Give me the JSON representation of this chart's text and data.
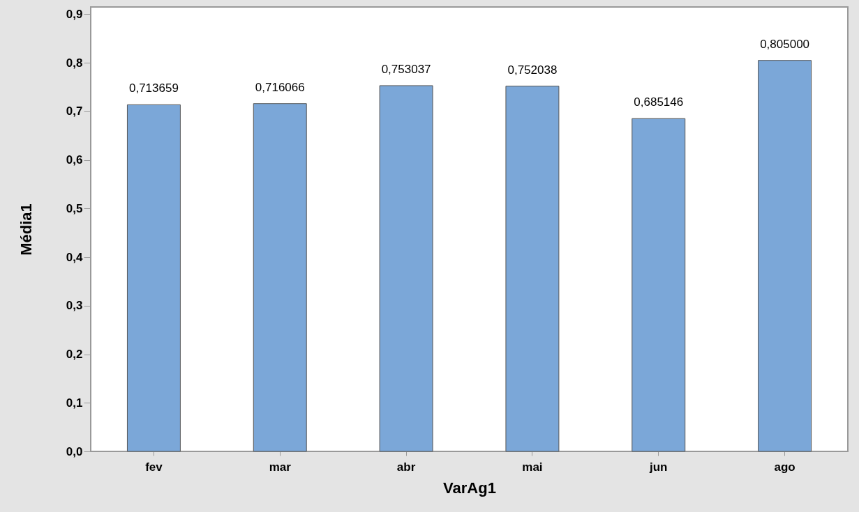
{
  "chart_data": {
    "type": "bar",
    "xlabel": "VarAg1",
    "ylabel": "Média1",
    "categories": [
      "fev",
      "mar",
      "abr",
      "mai",
      "jun",
      "ago"
    ],
    "values": [
      0.713659,
      0.716066,
      0.753037,
      0.752038,
      0.685146,
      0.805
    ],
    "value_labels": [
      "0,713659",
      "0,716066",
      "0,753037",
      "0,752038",
      "0,685146",
      "0,805000"
    ],
    "color": "#7ba7d8",
    "ylim": [
      0,
      0.915
    ],
    "yticks": [
      {
        "value": 0,
        "label": "0,0"
      },
      {
        "value": 0.1,
        "label": "0,1"
      },
      {
        "value": 0.2,
        "label": "0,2"
      },
      {
        "value": 0.3,
        "label": "0,3"
      },
      {
        "value": 0.4,
        "label": "0,4"
      },
      {
        "value": 0.5,
        "label": "0,5"
      },
      {
        "value": 0.6,
        "label": "0,6"
      },
      {
        "value": 0.7,
        "label": "0,7"
      },
      {
        "value": 0.8,
        "label": "0,8"
      },
      {
        "value": 0.9,
        "label": "0,9"
      }
    ],
    "grid": false
  }
}
